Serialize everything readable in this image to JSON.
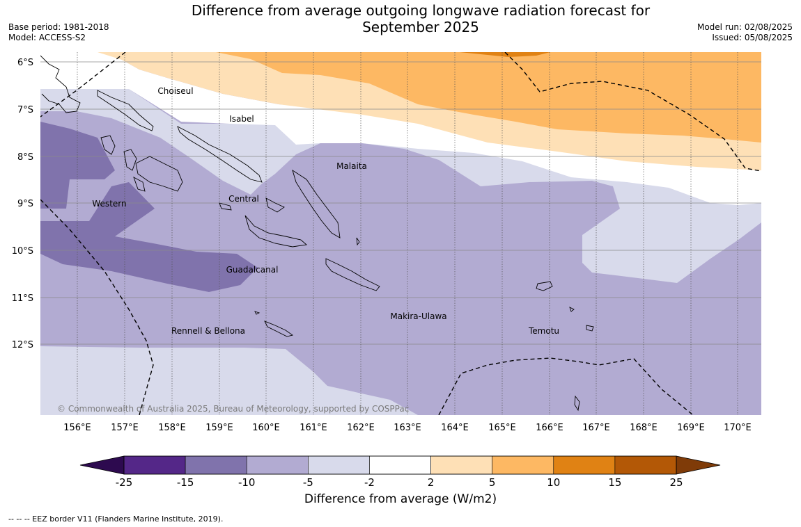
{
  "header": {
    "title_line1": "Difference from average outgoing longwave radiation forecast for",
    "title_line2": "September 2025",
    "base_period": "Base period: 1981-2018",
    "model": "Model: ACCESS-S2",
    "model_run": "Model run: 02/08/2025",
    "issued": "Issued: 05/08/2025"
  },
  "map": {
    "lat_labels": [
      "6°S",
      "7°S",
      "8°S",
      "9°S",
      "10°S",
      "11°S",
      "12°S"
    ],
    "lon_labels": [
      "156°E",
      "157°E",
      "158°E",
      "159°E",
      "160°E",
      "161°E",
      "162°E",
      "163°E",
      "164°E",
      "165°E",
      "166°E",
      "167°E",
      "168°E",
      "169°E",
      "170°E"
    ],
    "regions": [
      {
        "name": "Choiseul"
      },
      {
        "name": "Isabel"
      },
      {
        "name": "Malaita"
      },
      {
        "name": "Western"
      },
      {
        "name": "Central"
      },
      {
        "name": "Guadalcanal"
      },
      {
        "name": "Makira-Ulawa"
      },
      {
        "name": "Rennell & Bellona"
      },
      {
        "name": "Temotu"
      }
    ],
    "copyright": "© Commonwealth of Australia 2025, Bureau of Meteorology, supported by COSPPac"
  },
  "colorbar": {
    "ticks": [
      "-25",
      "-15",
      "-10",
      "-5",
      "-2",
      "2",
      "5",
      "10",
      "15",
      "25"
    ],
    "colors": [
      "#2d0a4f",
      "#542788",
      "#8073ac",
      "#b2abd2",
      "#d8daeb",
      "#ffffff",
      "#fee0b6",
      "#fdb863",
      "#e08214",
      "#b35806",
      "#7f3b08"
    ],
    "label": "Difference from average (W/m2)"
  },
  "footnote": "--  --  -- EEZ border V11 (Flanders Marine Institute, 2019)."
}
